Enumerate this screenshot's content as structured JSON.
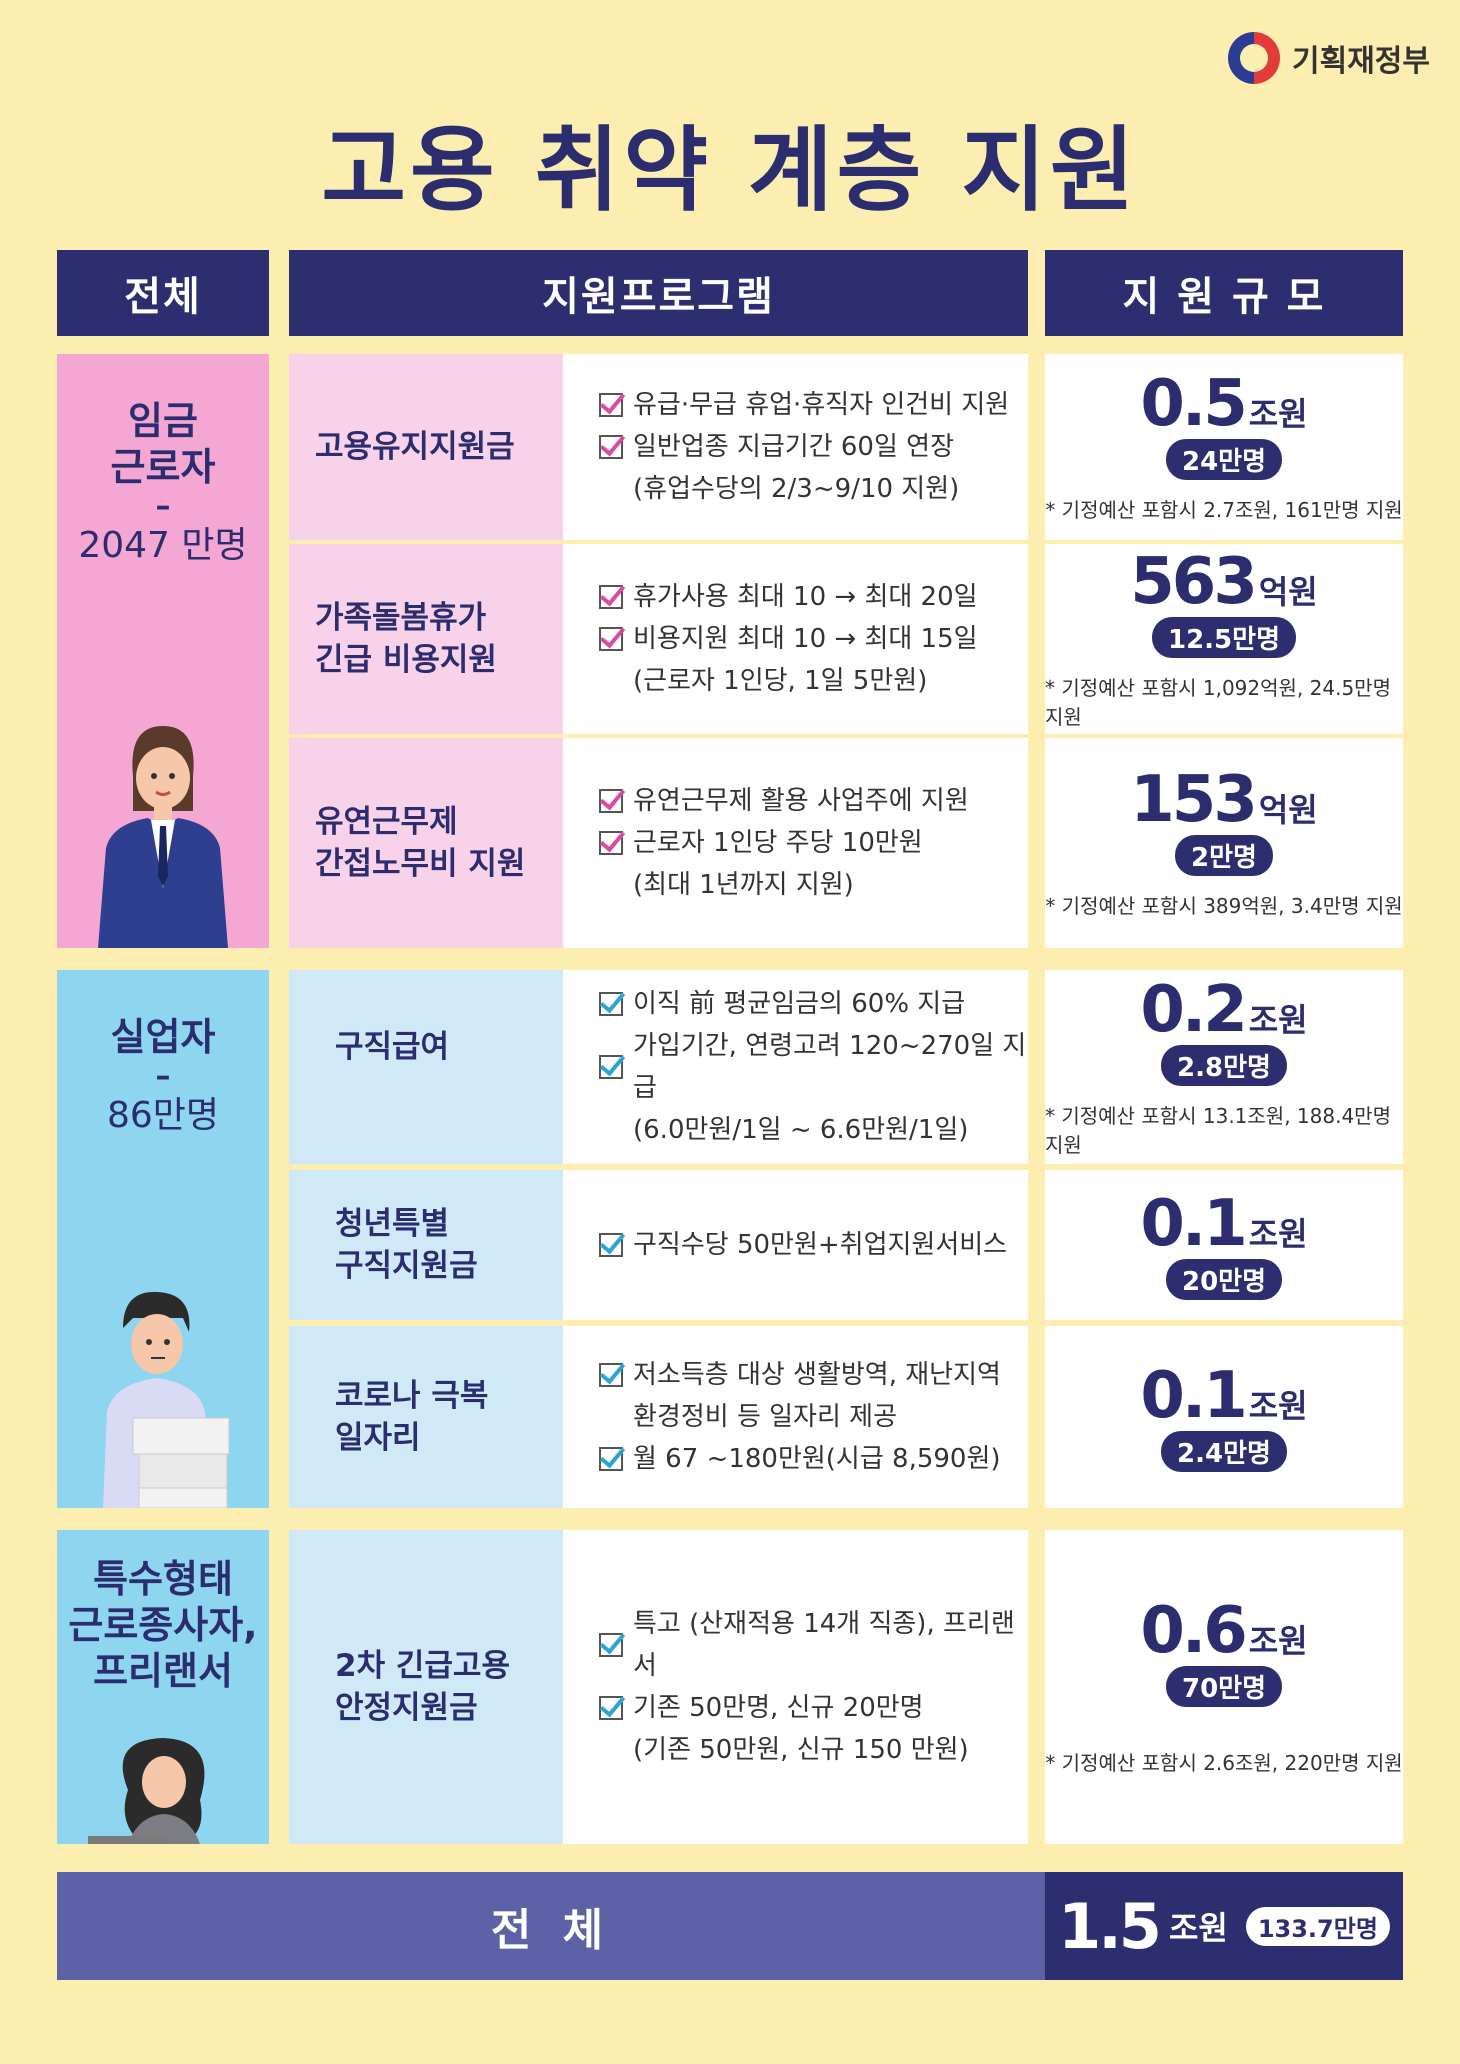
{
  "org": "기획재정부",
  "title": "고용 취약 계층 지원",
  "headers": {
    "col1": "전체",
    "col2": "지원프로그램",
    "col3": "지 원 규 모"
  },
  "groups": [
    {
      "name": "임금\n근로자",
      "dash": "–",
      "count": "2047 만명"
    },
    {
      "name": "실업자",
      "dash": "–",
      "count": "86만명"
    },
    {
      "name": "특수형태\n근로종사자,\n프리랜서"
    }
  ],
  "programs": [
    {
      "name": "고용유지지원금",
      "lines": [
        "유급·무급 휴업·휴직자 인건비 지원",
        "일반업종 지급기간 60일 연장",
        "(휴업수당의 2/3~9/10 지원)"
      ],
      "amount": "0.5",
      "unit": "조원",
      "people": "24만명",
      "note": "* 기정예산 포함시 2.7조원, 161만명 지원"
    },
    {
      "name": "가족돌봄휴가\n긴급 비용지원",
      "lines": [
        "휴가사용 최대 10 → 최대 20일",
        "비용지원 최대 10 → 최대 15일",
        "(근로자 1인당, 1일 5만원)"
      ],
      "amount": "563",
      "unit": "억원",
      "people": "12.5만명",
      "note": "* 기정예산 포함시 1,092억원, 24.5만명 지원"
    },
    {
      "name": "유연근무제\n간접노무비 지원",
      "lines": [
        "유연근무제 활용 사업주에 지원",
        "근로자 1인당 주당 10만원",
        "(최대 1년까지 지원)"
      ],
      "amount": "153",
      "unit": "억원",
      "people": "2만명",
      "note": "* 기정예산 포함시 389억원, 3.4만명 지원"
    },
    {
      "name": "구직급여",
      "lines": [
        "이직 前 평균임금의 60% 지급",
        "가입기간, 연령고려 120~270일 지급",
        "(6.0만원/1일 ~ 6.6만원/1일)"
      ],
      "amount": "0.2",
      "unit": "조원",
      "people": "2.8만명",
      "note": "* 기정예산 포함시 13.1조원, 188.4만명 지원"
    },
    {
      "name": "청년특별\n구직지원금",
      "lines": [
        "구직수당 50만원+취업지원서비스"
      ],
      "amount": "0.1",
      "unit": "조원",
      "people": "20만명",
      "note": ""
    },
    {
      "name": "코로나 극복\n일자리",
      "lines": [
        "저소득층 대상 생활방역, 재난지역",
        "환경정비 등 일자리 제공",
        "월 67 ~180만원(시급 8,590원)"
      ],
      "amount": "0.1",
      "unit": "조원",
      "people": "2.4만명",
      "note": ""
    },
    {
      "name": "2차 긴급고용\n안정지원금",
      "lines": [
        "특고 (산재적용 14개 직종), 프리랜서",
        "기존 50만명, 신규 20만명",
        "(기존 50만원, 신규 150 만원)"
      ],
      "amount": "0.6",
      "unit": "조원",
      "people": "70만명",
      "note": "* 기정예산 포함시 2.6조원, 220만명 지원"
    }
  ],
  "total": {
    "label": "전 체",
    "amount": "1.5",
    "unit": "조원",
    "people": "133.7만명"
  },
  "colors": {
    "background": "#fbeeb0",
    "navy": "#2c2e6f",
    "pink": "#f4a7d3",
    "pink_light": "#f8d2e8",
    "blue": "#8ed5f0",
    "blue_light": "#cfeaf6"
  }
}
